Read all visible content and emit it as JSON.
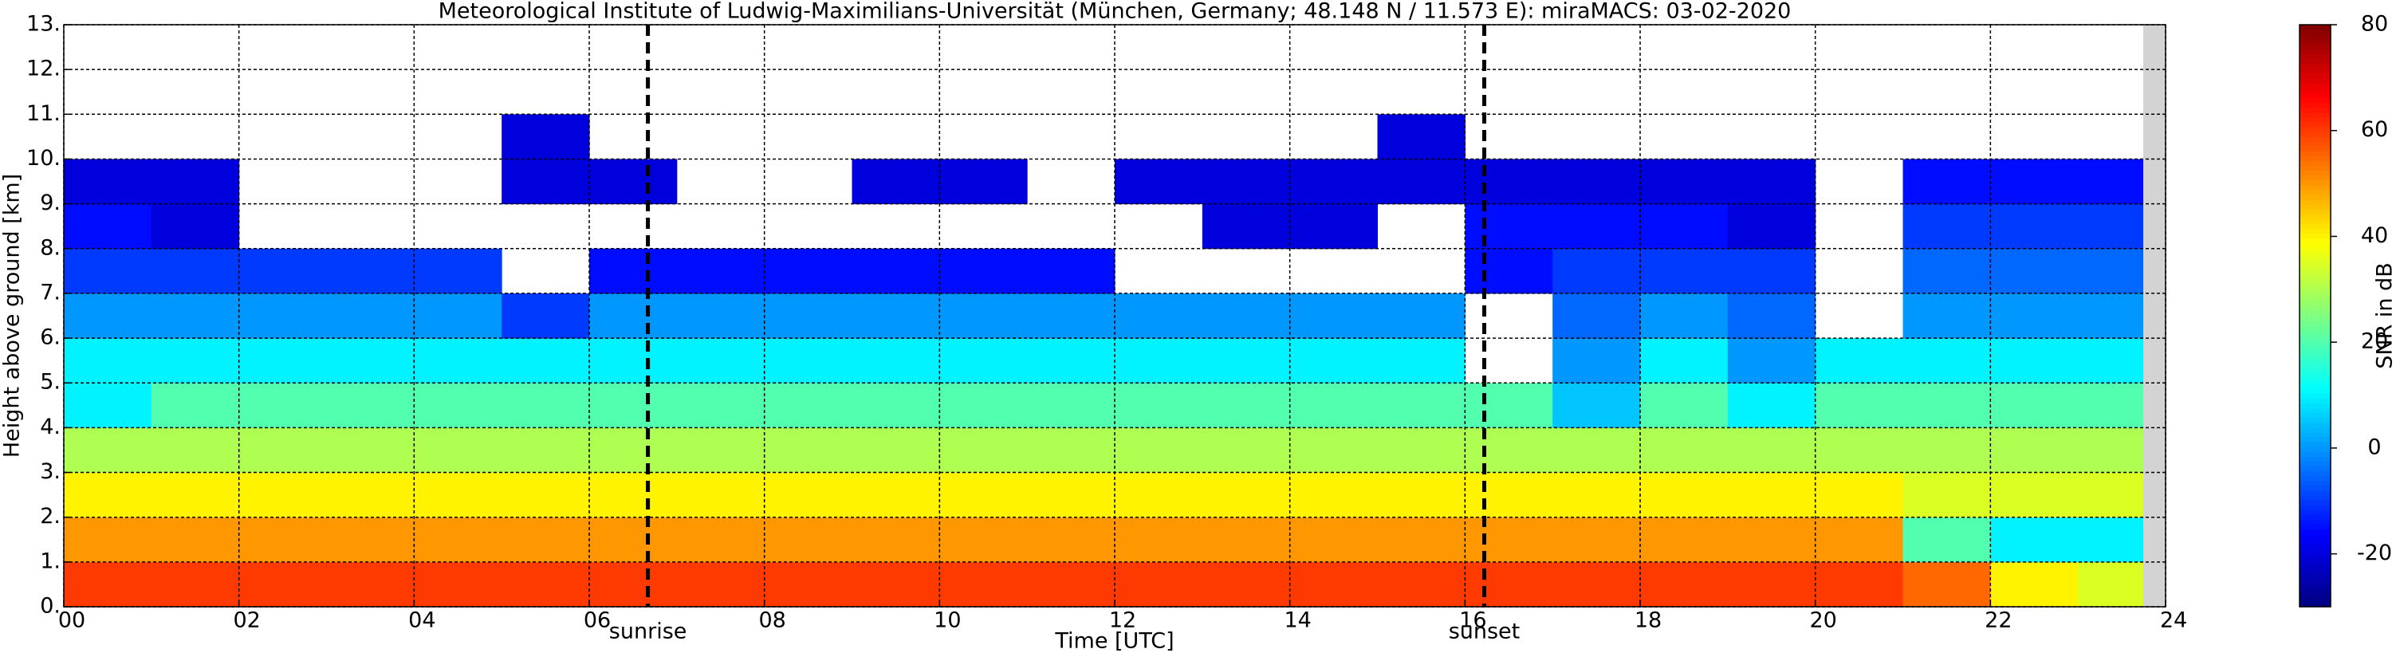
{
  "chart_data": {
    "type": "heatmap",
    "title": "Meteorological Institute of Ludwig-Maximilians-Universität (München, Germany; 48.148 N / 11.573 E):    miraMACS: 03-02-2020",
    "xlabel": "Time [UTC]",
    "ylabel": "Height above ground [km]",
    "colorbar_label": "SNR in dB",
    "x": [
      0,
      1,
      2,
      3,
      4,
      5,
      6,
      7,
      8,
      9,
      10,
      11,
      12,
      13,
      14,
      15,
      16,
      17,
      18,
      19,
      20,
      21,
      22,
      23,
      24
    ],
    "y": [
      0,
      1,
      2,
      3,
      4,
      5,
      6,
      7,
      8,
      9,
      10,
      11,
      12,
      13
    ],
    "z": [
      [
        60,
        60,
        60,
        60,
        60,
        60,
        60,
        60,
        60,
        60,
        60,
        60,
        60,
        60,
        60,
        60,
        60,
        60,
        60,
        60,
        60,
        55,
        40,
        35
      ],
      [
        50,
        50,
        50,
        50,
        50,
        50,
        50,
        50,
        50,
        50,
        50,
        50,
        50,
        50,
        50,
        50,
        50,
        50,
        50,
        50,
        50,
        20,
        10,
        10
      ],
      [
        40,
        40,
        40,
        40,
        40,
        40,
        40,
        40,
        40,
        40,
        40,
        40,
        40,
        40,
        40,
        40,
        40,
        40,
        40,
        40,
        40,
        35,
        35,
        35
      ],
      [
        30,
        30,
        30,
        30,
        30,
        30,
        30,
        30,
        30,
        30,
        30,
        30,
        30,
        30,
        30,
        30,
        30,
        30,
        30,
        30,
        30,
        30,
        30,
        30
      ],
      [
        10,
        20,
        20,
        20,
        20,
        20,
        20,
        20,
        20,
        20,
        20,
        20,
        20,
        20,
        20,
        20,
        20,
        5,
        20,
        10,
        20,
        20,
        20,
        20
      ],
      [
        10,
        10,
        10,
        10,
        10,
        10,
        10,
        10,
        10,
        10,
        10,
        10,
        10,
        10,
        10,
        10,
        null,
        0,
        10,
        0,
        10,
        10,
        10,
        10
      ],
      [
        0,
        0,
        0,
        0,
        0,
        -10,
        0,
        0,
        0,
        0,
        0,
        0,
        0,
        0,
        0,
        0,
        null,
        -5,
        0,
        -5,
        null,
        0,
        0,
        0
      ],
      [
        -10,
        -10,
        -10,
        -10,
        -10,
        null,
        -15,
        -15,
        -15,
        -15,
        -15,
        -15,
        null,
        null,
        null,
        null,
        -15,
        -10,
        -10,
        -10,
        null,
        -5,
        -5,
        -5
      ],
      [
        -15,
        -20,
        null,
        null,
        null,
        null,
        null,
        null,
        null,
        null,
        null,
        null,
        null,
        -20,
        -20,
        null,
        -15,
        -15,
        -15,
        -20,
        null,
        -10,
        -10,
        -10
      ],
      [
        -20,
        -20,
        null,
        null,
        null,
        -20,
        -20,
        null,
        null,
        -20,
        -20,
        null,
        -20,
        -20,
        -20,
        -20,
        -20,
        -20,
        -20,
        -20,
        null,
        -15,
        -15,
        -15
      ],
      [
        null,
        null,
        null,
        null,
        null,
        -20,
        null,
        null,
        null,
        null,
        null,
        null,
        null,
        null,
        null,
        -20,
        null,
        null,
        null,
        null,
        null,
        null,
        null,
        null
      ],
      [
        null,
        null,
        null,
        null,
        null,
        null,
        null,
        null,
        null,
        null,
        null,
        null,
        null,
        null,
        null,
        null,
        null,
        null,
        null,
        null,
        null,
        null,
        null,
        null
      ],
      [
        null,
        null,
        null,
        null,
        null,
        null,
        null,
        null,
        null,
        null,
        null,
        null,
        null,
        null,
        null,
        null,
        null,
        null,
        null,
        null,
        null,
        null,
        null,
        null
      ]
    ],
    "colormap": "jet",
    "clim": [
      -30,
      80
    ],
    "cticks": [
      -20,
      0,
      20,
      40,
      60,
      80
    ],
    "xlim": [
      0,
      24
    ],
    "ylim": [
      0,
      13
    ],
    "xticks": [
      {
        "value": 0,
        "label": "00"
      },
      {
        "value": 2,
        "label": "02"
      },
      {
        "value": 4,
        "label": "04"
      },
      {
        "value": 6,
        "label": "06"
      },
      {
        "value": 8,
        "label": "08"
      },
      {
        "value": 10,
        "label": "10"
      },
      {
        "value": 12,
        "label": "12"
      },
      {
        "value": 14,
        "label": "14"
      },
      {
        "value": 16,
        "label": "16"
      },
      {
        "value": 18,
        "label": "18"
      },
      {
        "value": 20,
        "label": "20"
      },
      {
        "value": 22,
        "label": "22"
      },
      {
        "value": 24,
        "label": "24"
      }
    ],
    "yticks": [
      {
        "value": 0,
        "label": "0."
      },
      {
        "value": 1,
        "label": "1."
      },
      {
        "value": 2,
        "label": "2."
      },
      {
        "value": 3,
        "label": "3."
      },
      {
        "value": 4,
        "label": "4."
      },
      {
        "value": 5,
        "label": "5."
      },
      {
        "value": 6,
        "label": "6."
      },
      {
        "value": 7,
        "label": "7."
      },
      {
        "value": 8,
        "label": "8."
      },
      {
        "value": 9,
        "label": "9."
      },
      {
        "value": 10,
        "label": "10."
      },
      {
        "value": 11,
        "label": "11."
      },
      {
        "value": 12,
        "label": "12."
      },
      {
        "value": 13,
        "label": "13."
      }
    ],
    "grid": true,
    "annotations": [
      {
        "x": 6.67,
        "text": "sunrise"
      },
      {
        "x": 16.22,
        "text": "sunset"
      }
    ]
  }
}
